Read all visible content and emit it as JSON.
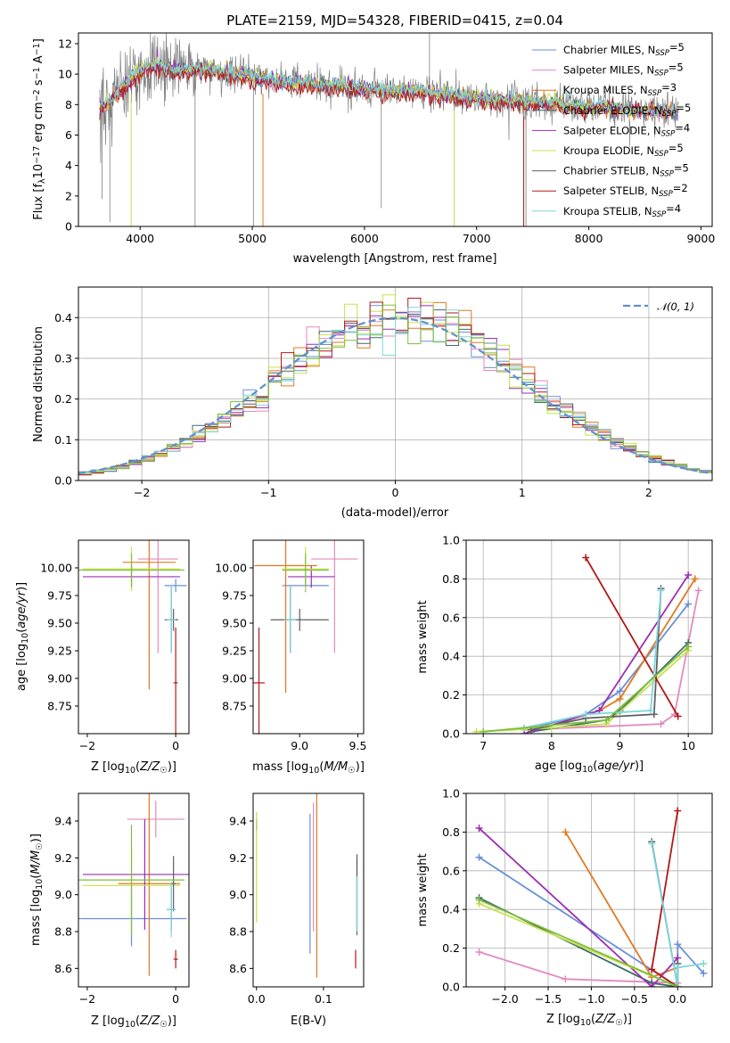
{
  "figure": {
    "title": "PLATE=2159, MJD=54328, FIBERID=0415, z=0.04"
  },
  "colors": {
    "Chabrier MILES": "#6a8fd8",
    "Salpeter MILES": "#e38ac0",
    "Kroupa MILES": "#e0791f",
    "Chabrier ELODIE": "#3f6b6b",
    "Salpeter ELODIE": "#9a2fb3",
    "Kroupa ELODIE": "#c8e04a",
    "Chabrier STELIB": "#606060",
    "Salpeter STELIB": "#b01818",
    "Kroupa STELIB": "#7fd6dc",
    "Kroupa ELODIE (green)": "#7fbf3a"
  },
  "chart_data": [
    {
      "id": "spectrum",
      "type": "line",
      "xlabel": "wavelength [Angstrom, rest frame]",
      "ylabel": "Flux [fλ10⁻¹⁷ erg cm⁻² s⁻¹ A⁻¹]",
      "ylabel_main": "Flux [f",
      "ylabel_sub": "λ",
      "ylabel_rest": "10",
      "ylabel_sup1": "−17",
      "ylabel_mid": " erg cm",
      "ylabel_sup2": "−2",
      "ylabel_mid2": " s",
      "ylabel_sup3": "−1",
      "ylabel_end": " A",
      "ylabel_sup4": "−1",
      "ylabel_close": "]",
      "xlim": [
        3450,
        9100
      ],
      "ylim": [
        0,
        12.7
      ],
      "xticks": [
        4000,
        5000,
        6000,
        7000,
        8000,
        9000
      ],
      "yticks": [
        0,
        2,
        4,
        6,
        8,
        10,
        12
      ],
      "grid": false,
      "legend_position": "upper right",
      "legend": [
        {
          "name": "Chabrier MILES",
          "nssp": "5"
        },
        {
          "name": "Salpeter MILES",
          "nssp": "5"
        },
        {
          "name": "Kroupa MILES",
          "nssp": "3"
        },
        {
          "name": "Chabrier ELODIE",
          "nssp": "5"
        },
        {
          "name": "Salpeter ELODIE",
          "nssp": "4"
        },
        {
          "name": "Kroupa ELODIE",
          "nssp": "5"
        },
        {
          "name": "Chabrier STELIB",
          "nssp": "5"
        },
        {
          "name": "Salpeter STELIB",
          "nssp": "2"
        },
        {
          "name": "Kroupa STELIB",
          "nssp": "4"
        }
      ],
      "legend_nssp_prefix": "N",
      "legend_nssp_sub": "SSP",
      "continuum": {
        "x": [
          3600,
          3700,
          3800,
          3900,
          4000,
          4100,
          4200,
          4300,
          4500,
          4700,
          4900,
          5100,
          5300,
          5500,
          5700,
          5900,
          6100,
          6300,
          6500,
          6700,
          6900,
          7100,
          7300,
          7500,
          7700,
          7900,
          8100,
          8300,
          8500,
          8800
        ],
        "y": [
          7.5,
          8.0,
          8.8,
          9.6,
          10.3,
          10.6,
          10.6,
          10.2,
          10.4,
          10.2,
          10.0,
          9.7,
          9.5,
          9.4,
          9.3,
          9.2,
          9.0,
          8.9,
          8.9,
          8.7,
          8.5,
          8.4,
          8.3,
          8.2,
          8.1,
          7.9,
          7.8,
          7.7,
          7.6,
          7.5
        ]
      }
    },
    {
      "id": "residual-hist",
      "type": "step",
      "xlabel": "(data-model)/error",
      "ylabel": "Normed distribution",
      "xlim": [
        -2.5,
        2.5
      ],
      "ylim": [
        0,
        0.475
      ],
      "xticks": [
        -2,
        -1,
        0,
        1,
        2
      ],
      "yticks": [
        0.0,
        0.1,
        0.2,
        0.3,
        0.4
      ],
      "grid": true,
      "legend_position": "upper right",
      "legend_label": "𝒩(0, 1)",
      "gaussian": {
        "mean": 0,
        "sigma": 1,
        "color": "#5f8fd0"
      },
      "bin_width": 0.1
    },
    {
      "id": "age-vs-Z",
      "type": "errorbar",
      "xlabel": "Z [log10(Z/Z☉)]",
      "ylabel": "age  [log10(age/yr)]",
      "xlim": [
        -2.2,
        0.3
      ],
      "ylim": [
        8.5,
        10.25
      ],
      "xticks": [
        -2,
        0
      ],
      "yticks": [
        8.75,
        9.0,
        9.25,
        9.5,
        9.75,
        10.0
      ],
      "points": [
        {
          "series": "Chabrier MILES",
          "x": 0.0,
          "y": 9.84,
          "xerr": 0.25,
          "yerr": 0.06
        },
        {
          "series": "Salpeter MILES",
          "x": -0.4,
          "y": 10.08,
          "xerr": 0.45,
          "yerr": 0.85
        },
        {
          "series": "Kroupa MILES",
          "x": -0.6,
          "y": 10.05,
          "xerr": 0.6,
          "yerr": 1.15
        },
        {
          "series": "Chabrier ELODIE",
          "x": -0.1,
          "y": 9.53,
          "xerr": 0.15,
          "yerr": 0.3
        },
        {
          "series": "Salpeter ELODIE",
          "x": -1.0,
          "y": 9.92,
          "xerr": 1.1,
          "yerr": 0.1
        },
        {
          "series": "Kroupa ELODIE",
          "x": -1.0,
          "y": 9.99,
          "xerr": 1.1,
          "yerr": 0.2
        },
        {
          "series": "Chabrier STELIB",
          "x": -0.05,
          "y": 9.53,
          "xerr": 0.1,
          "yerr": 0.1
        },
        {
          "series": "Salpeter STELIB",
          "x": 0.0,
          "y": 8.96,
          "xerr": 0.05,
          "yerr": 0.5
        },
        {
          "series": "Kroupa STELIB",
          "x": -0.1,
          "y": 9.53,
          "xerr": 0.1,
          "yerr": 0.3
        },
        {
          "series": "Kroupa ELODIE (green)",
          "x": -1.0,
          "y": 9.98,
          "xerr": 1.2,
          "yerr": 0.15
        }
      ]
    },
    {
      "id": "age-vs-mass",
      "type": "errorbar",
      "xlabel": "mass [log10(M/M☉)]",
      "ylabel": "",
      "xlim": [
        8.6,
        9.55
      ],
      "ylim": [
        8.5,
        10.25
      ],
      "xticks": [
        9.0,
        9.5
      ],
      "yticks": [
        8.75,
        9.0,
        9.25,
        9.5,
        9.75,
        10.0
      ],
      "points": [
        {
          "series": "Chabrier MILES",
          "x": 9.05,
          "y": 9.84,
          "xerr": 0.2,
          "yerr": 0.06
        },
        {
          "series": "Salpeter MILES",
          "x": 9.3,
          "y": 10.08,
          "xerr": 0.2,
          "yerr": 0.85
        },
        {
          "series": "Kroupa MILES",
          "x": 8.88,
          "y": 10.02,
          "xerr": 0.27,
          "yerr": 1.15
        },
        {
          "series": "Chabrier ELODIE",
          "x": 8.92,
          "y": 9.53,
          "xerr": 0.05,
          "yerr": 0.3
        },
        {
          "series": "Salpeter ELODIE",
          "x": 9.1,
          "y": 9.92,
          "xerr": 0.2,
          "yerr": 0.1
        },
        {
          "series": "Kroupa ELODIE",
          "x": 9.05,
          "y": 9.99,
          "xerr": 0.2,
          "yerr": 0.2
        },
        {
          "series": "Chabrier STELIB",
          "x": 9.0,
          "y": 9.53,
          "xerr": 0.25,
          "yerr": 0.1
        },
        {
          "series": "Salpeter STELIB",
          "x": 8.65,
          "y": 8.96,
          "xerr": 0.05,
          "yerr": 0.5
        },
        {
          "series": "Kroupa STELIB",
          "x": 8.92,
          "y": 9.53,
          "xerr": 0.05,
          "yerr": 0.3
        },
        {
          "series": "Kroupa ELODIE (green)",
          "x": 9.05,
          "y": 9.98,
          "xerr": 0.2,
          "yerr": 0.15
        }
      ]
    },
    {
      "id": "weight-vs-age",
      "type": "line",
      "xlabel": "age  [log10(age/yr)]",
      "ylabel": "mass weight",
      "xlim": [
        6.75,
        10.35
      ],
      "ylim": [
        0,
        1.0
      ],
      "xticks": [
        7,
        8,
        9,
        10
      ],
      "yticks": [
        0.0,
        0.2,
        0.4,
        0.6,
        0.8,
        1.0
      ],
      "grid": true,
      "series": [
        {
          "name": "Chabrier MILES",
          "x": [
            7.6,
            8.5,
            9.0,
            10.0
          ],
          "y": [
            0.02,
            0.1,
            0.22,
            0.67
          ]
        },
        {
          "name": "Salpeter MILES",
          "x": [
            7.6,
            9.6,
            9.8,
            10.15
          ],
          "y": [
            0.02,
            0.05,
            0.1,
            0.74
          ]
        },
        {
          "name": "Kroupa MILES",
          "x": [
            7.7,
            8.7,
            9.0,
            10.1
          ],
          "y": [
            0.01,
            0.12,
            0.18,
            0.8
          ]
        },
        {
          "name": "Chabrier ELODIE",
          "x": [
            7.7,
            8.8,
            9.0,
            10.0
          ],
          "y": [
            0.01,
            0.07,
            0.12,
            0.47
          ]
        },
        {
          "name": "Salpeter ELODIE",
          "x": [
            7.6,
            8.7,
            10.0
          ],
          "y": [
            0.0,
            0.12,
            0.82
          ]
        },
        {
          "name": "Kroupa ELODIE",
          "x": [
            6.9,
            8.0,
            8.8,
            10.0
          ],
          "y": [
            0.01,
            0.03,
            0.05,
            0.43
          ]
        },
        {
          "name": "Chabrier STELIB",
          "x": [
            7.7,
            8.5,
            9.5,
            9.6
          ],
          "y": [
            0.02,
            0.08,
            0.1,
            0.75
          ]
        },
        {
          "name": "Salpeter STELIB",
          "x": [
            8.5,
            9.85
          ],
          "y": [
            0.91,
            0.09
          ]
        },
        {
          "name": "Kroupa STELIB",
          "x": [
            7.6,
            8.5,
            9.45,
            9.6
          ],
          "y": [
            0.03,
            0.1,
            0.12,
            0.74
          ]
        },
        {
          "name": "Kroupa ELODIE (green)",
          "x": [
            7.0,
            8.8,
            10.0
          ],
          "y": [
            0.01,
            0.07,
            0.45
          ]
        }
      ]
    },
    {
      "id": "mass-vs-Z",
      "type": "errorbar",
      "xlabel": "Z [log10(Z/Z☉)]",
      "ylabel": "mass [log10(M/M☉)]",
      "xlim": [
        -2.2,
        0.3
      ],
      "ylim": [
        8.5,
        9.55
      ],
      "xticks": [
        -2,
        0
      ],
      "yticks": [
        8.6,
        8.8,
        9.0,
        9.2,
        9.4
      ],
      "points": [
        {
          "series": "Chabrier MILES",
          "x": -1.0,
          "y": 8.87,
          "xerr": 1.25,
          "yerr": 0.15
        },
        {
          "series": "Salpeter MILES",
          "x": -0.45,
          "y": 9.41,
          "xerr": 0.65,
          "yerr": 0.1
        },
        {
          "series": "Kroupa MILES",
          "x": -0.6,
          "y": 9.06,
          "xerr": 0.7,
          "yerr": 0.5
        },
        {
          "series": "Chabrier ELODIE",
          "x": -0.1,
          "y": 8.92,
          "xerr": 0.1,
          "yerr": 0.12
        },
        {
          "series": "Salpeter ELODIE",
          "x": -0.7,
          "y": 9.11,
          "xerr": 1.4,
          "yerr": 0.3
        },
        {
          "series": "Kroupa ELODIE",
          "x": -1.0,
          "y": 9.05,
          "xerr": 1.1,
          "yerr": 0.2
        },
        {
          "series": "Chabrier STELIB",
          "x": -0.05,
          "y": 9.06,
          "xerr": 0.05,
          "yerr": 0.15
        },
        {
          "series": "Salpeter STELIB",
          "x": 0.0,
          "y": 8.65,
          "xerr": 0.05,
          "yerr": 0.05
        },
        {
          "series": "Kroupa STELIB",
          "x": -0.1,
          "y": 8.92,
          "xerr": 0.1,
          "yerr": 0.15
        },
        {
          "series": "Kroupa ELODIE (green)",
          "x": -1.0,
          "y": 9.08,
          "xerr": 1.2,
          "yerr": 0.3
        }
      ]
    },
    {
      "id": "mass-vs-ebv",
      "type": "errorbar",
      "xlabel": "E(B-V)",
      "ylabel": "",
      "xlim": [
        -0.005,
        0.16
      ],
      "ylim": [
        8.5,
        9.55
      ],
      "xticks": [
        0.0,
        0.1
      ],
      "yticks": [
        8.6,
        8.8,
        9.0,
        9.2,
        9.4
      ],
      "points": [
        {
          "series": "Chabrier MILES",
          "x": 0.08,
          "y": 9.06,
          "xerr": 0.0,
          "yerr": 0.38
        },
        {
          "series": "Salpeter MILES",
          "x": 0.085,
          "y": 9.15,
          "xerr": 0.0,
          "yerr": 0.35
        },
        {
          "series": "Kroupa MILES",
          "x": 0.09,
          "y": 9.05,
          "xerr": 0.0,
          "yerr": 0.5
        },
        {
          "series": "Chabrier ELODIE",
          "x": 0.15,
          "y": 9.0,
          "xerr": 0.0,
          "yerr": 0.2
        },
        {
          "series": "Salpeter ELODIE",
          "x": 0.0,
          "y": 9.38,
          "xerr": 0.0,
          "yerr": 0.03
        },
        {
          "series": "Kroupa ELODIE",
          "x": 0.0,
          "y": 9.15,
          "xerr": 0.0,
          "yerr": 0.3
        },
        {
          "series": "Chabrier STELIB",
          "x": 0.15,
          "y": 9.0,
          "xerr": 0.0,
          "yerr": 0.22
        },
        {
          "series": "Salpeter STELIB",
          "x": 0.148,
          "y": 8.65,
          "xerr": 0.0,
          "yerr": 0.05
        },
        {
          "series": "Kroupa STELIB",
          "x": 0.15,
          "y": 8.95,
          "xerr": 0.0,
          "yerr": 0.15
        }
      ]
    },
    {
      "id": "weight-vs-Z",
      "type": "line",
      "xlabel": "Z [log10(Z/Z☉)]",
      "ylabel": "mass weight",
      "xlim": [
        -2.45,
        0.4
      ],
      "ylim": [
        0,
        1.0
      ],
      "xticks": [
        -2.0,
        -1.5,
        -1.0,
        -0.5,
        0.0
      ],
      "yticks": [
        0.0,
        0.2,
        0.4,
        0.6,
        0.8,
        1.0
      ],
      "grid": true,
      "series": [
        {
          "name": "Chabrier MILES",
          "x": [
            -2.3,
            0.0,
            0.0,
            0.3
          ],
          "y": [
            0.67,
            0.0,
            0.22,
            0.07
          ]
        },
        {
          "name": "Salpeter MILES",
          "x": [
            -2.3,
            -1.3,
            0.0
          ],
          "y": [
            0.18,
            0.04,
            0.02
          ]
        },
        {
          "name": "Kroupa MILES",
          "x": [
            -1.3,
            -0.3,
            0.0
          ],
          "y": [
            0.8,
            0.05,
            0.1
          ]
        },
        {
          "name": "Chabrier ELODIE",
          "x": [
            -2.3,
            -0.3,
            0.0
          ],
          "y": [
            0.46,
            0.02,
            0.0
          ]
        },
        {
          "name": "Salpeter ELODIE",
          "x": [
            -2.3,
            -0.3,
            0.0
          ],
          "y": [
            0.82,
            0.0,
            0.15
          ]
        },
        {
          "name": "Kroupa ELODIE",
          "x": [
            -2.3,
            0.0
          ],
          "y": [
            0.43,
            0.0
          ]
        },
        {
          "name": "Chabrier STELIB",
          "x": [
            -0.3,
            0.0,
            0.0
          ],
          "y": [
            0.75,
            0.0,
            0.12
          ]
        },
        {
          "name": "Salpeter STELIB",
          "x": [
            0.0,
            -0.3,
            0.0
          ],
          "y": [
            0.91,
            0.09,
            0.0
          ]
        },
        {
          "name": "Kroupa STELIB",
          "x": [
            -0.3,
            0.0,
            0.0,
            0.3
          ],
          "y": [
            0.74,
            0.0,
            0.1,
            0.12
          ]
        },
        {
          "name": "Kroupa ELODIE (green)",
          "x": [
            -2.3,
            0.0
          ],
          "y": [
            0.45,
            0.0
          ]
        }
      ]
    }
  ]
}
